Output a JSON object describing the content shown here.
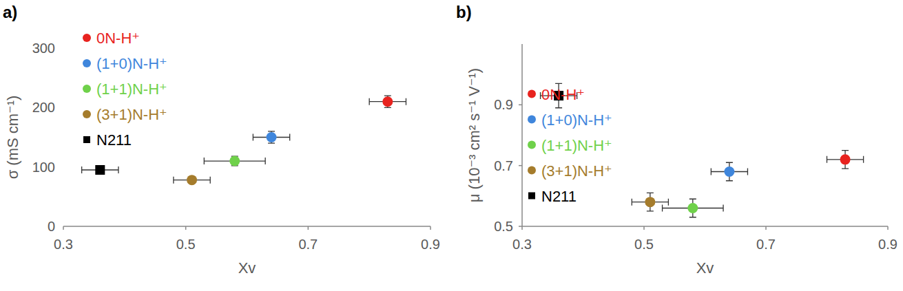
{
  "chart_data": [
    {
      "type": "scatter",
      "title": "a)",
      "x_label": "Xv",
      "y_label": "σ (mS cm⁻¹)",
      "xlim": [
        0.3,
        0.9
      ],
      "xticks": [
        0.3,
        0.5,
        0.7,
        0.9
      ],
      "ylim": [
        0,
        300
      ],
      "yticks": [
        0,
        100,
        200,
        300
      ],
      "grid": false,
      "legend": "upper left",
      "series": [
        {
          "name": "0N-H⁺",
          "color": "#e8231f",
          "marker": "circle",
          "x": [
            0.83
          ],
          "values": [
            210
          ],
          "x_err": [
            0.03
          ],
          "y_err": [
            10
          ]
        },
        {
          "name": "(1+0)N-H⁺",
          "color": "#3f86dc",
          "marker": "circle",
          "x": [
            0.64
          ],
          "values": [
            150
          ],
          "x_err": [
            0.03
          ],
          "y_err": [
            10
          ]
        },
        {
          "name": "(1+1)N-H⁺",
          "color": "#6fd14a",
          "marker": "circle",
          "x": [
            0.58
          ],
          "values": [
            110
          ],
          "x_err": [
            0.05
          ],
          "y_err": [
            8
          ]
        },
        {
          "name": "(3+1)N-H⁺",
          "color": "#a57c2c",
          "marker": "circle",
          "x": [
            0.51
          ],
          "values": [
            78
          ],
          "x_err": [
            0.03
          ],
          "y_err": [
            3
          ]
        },
        {
          "name": "N211",
          "color": "#000000",
          "marker": "square",
          "x": [
            0.36
          ],
          "values": [
            95
          ],
          "x_err": [
            0.03
          ],
          "y_err": [
            5
          ]
        }
      ]
    },
    {
      "type": "scatter",
      "title": "b)",
      "x_label": "Xv",
      "y_label": "μ (10⁻³ cm² s⁻¹ V⁻¹)",
      "xlim": [
        0.3,
        0.9
      ],
      "xticks": [
        0.3,
        0.5,
        0.7,
        0.9
      ],
      "ylim": [
        0.5,
        1.1
      ],
      "yticks": [
        0.5,
        0.7,
        0.9
      ],
      "grid": false,
      "legend": "center left",
      "series": [
        {
          "name": "0N-H⁺",
          "color": "#e8231f",
          "marker": "circle",
          "x": [
            0.83
          ],
          "values": [
            0.72
          ],
          "x_err": [
            0.03
          ],
          "y_err": [
            0.03
          ]
        },
        {
          "name": "(1+0)N-H⁺",
          "color": "#3f86dc",
          "marker": "circle",
          "x": [
            0.64
          ],
          "values": [
            0.68
          ],
          "x_err": [
            0.03
          ],
          "y_err": [
            0.03
          ]
        },
        {
          "name": "(1+1)N-H⁺",
          "color": "#6fd14a",
          "marker": "circle",
          "x": [
            0.58
          ],
          "values": [
            0.56
          ],
          "x_err": [
            0.05
          ],
          "y_err": [
            0.03
          ]
        },
        {
          "name": "(3+1)N-H⁺",
          "color": "#a57c2c",
          "marker": "circle",
          "x": [
            0.51
          ],
          "values": [
            0.58
          ],
          "x_err": [
            0.03
          ],
          "y_err": [
            0.03
          ]
        },
        {
          "name": "N211",
          "color": "#000000",
          "marker": "square",
          "x": [
            0.36
          ],
          "values": [
            0.93
          ],
          "x_err": [
            0.03
          ],
          "y_err": [
            0.04
          ]
        }
      ]
    }
  ]
}
